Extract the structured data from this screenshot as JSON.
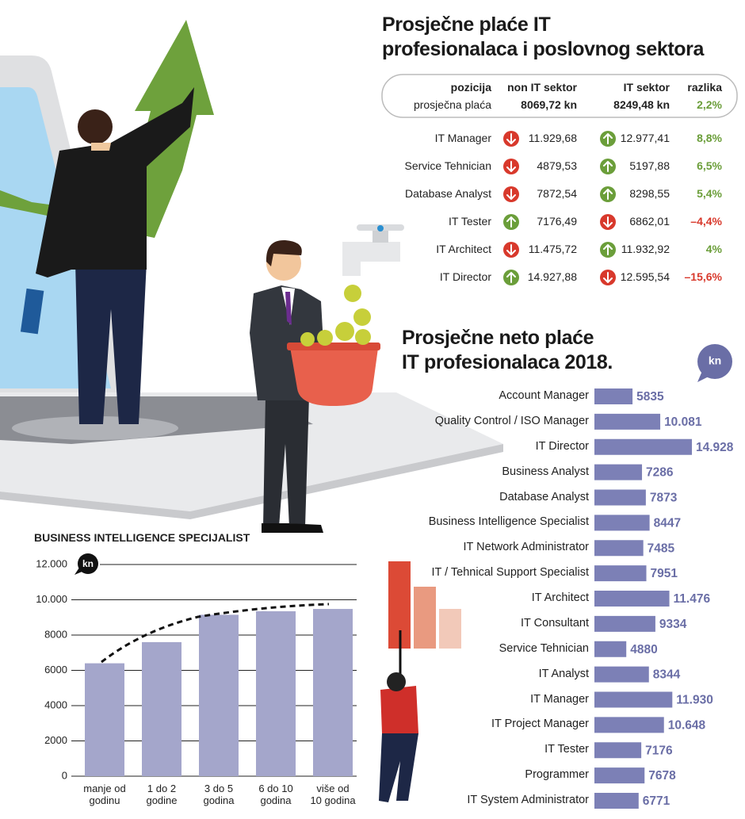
{
  "table": {
    "title": "Prosječne plaće IT\nprofesionalaca i poslovnog sektora",
    "header": [
      "pozicija",
      "non IT sektor",
      "IT sektor",
      "razlika"
    ],
    "summary": [
      "prosječna plaća",
      "8069,72 kn",
      "8249,48 kn",
      "2,2%"
    ],
    "colors": {
      "up": "#6b9e3a",
      "down": "#d8392c"
    },
    "rows": [
      {
        "label": "IT Manager",
        "non_it": "11.929,68",
        "non_it_trend": "down",
        "it": "12.977,41",
        "it_trend": "up",
        "diff": "8,8%"
      },
      {
        "label": "Service Tehnician",
        "non_it": "4879,53",
        "non_it_trend": "down",
        "it": "5197,88",
        "it_trend": "up",
        "diff": "6,5%"
      },
      {
        "label": "Database Analyst",
        "non_it": "7872,54",
        "non_it_trend": "down",
        "it": "8298,55",
        "it_trend": "up",
        "diff": "5,4%"
      },
      {
        "label": "IT Tester",
        "non_it": "7176,49",
        "non_it_trend": "up",
        "it": "6862,01",
        "it_trend": "down",
        "diff": "–4,4%"
      },
      {
        "label": "IT Architect",
        "non_it": "11.475,72",
        "non_it_trend": "down",
        "it": "11.932,92",
        "it_trend": "up",
        "diff": "4%"
      },
      {
        "label": "IT Director",
        "non_it": "14.927,88",
        "non_it_trend": "up",
        "it": "12.595,54",
        "it_trend": "down",
        "diff": "–15,6%"
      }
    ]
  },
  "chart_data": [
    {
      "type": "hbar",
      "title": "Prosječne neto plaće\nIT profesionalaca 2018.",
      "unit": "kn",
      "color": "#7c80b6",
      "label_color": "#6a6ea6",
      "categories": [
        "Account Manager",
        "Quality Control / ISO Manager",
        "IT Director",
        "Business Analyst",
        "Database Analyst",
        "Business Intelligence Specialist",
        "IT Network Administrator",
        "IT / Tehnical Support Specialist",
        "IT Architect",
        "IT Consultant",
        "Service Tehnician",
        "IT Analyst",
        "IT Manager",
        "IT Project Manager",
        "IT Tester",
        "Programmer",
        "IT System Administrator"
      ],
      "values": [
        5835,
        10081,
        14928,
        7286,
        7873,
        8447,
        7485,
        7951,
        11476,
        9334,
        4880,
        8344,
        11930,
        10648,
        7176,
        7678,
        6771
      ],
      "value_labels": [
        "5835",
        "10.081",
        "14.928",
        "7286",
        "7873",
        "8447",
        "7485",
        "7951",
        "11.476",
        "9334",
        "4880",
        "8344",
        "11.930",
        "10.648",
        "7176",
        "7678",
        "6771"
      ]
    },
    {
      "type": "bar",
      "title": "BUSINESS INTELLIGENCE SPECIJALIST",
      "unit": "kn",
      "color": "#a4a6cb",
      "categories": [
        "manje od\ngodinu",
        "1 do 2\ngodine",
        "3 do 5\ngodina",
        "6 do 10\ngodina",
        "više od\n10 godina"
      ],
      "values": [
        6400,
        7600,
        9150,
        9350,
        9480
      ],
      "ylim": [
        0,
        12000
      ],
      "yticks": [
        0,
        2000,
        4000,
        6000,
        8000,
        {
          "value": 10000,
          "label": "10.000"
        },
        {
          "value": 12000,
          "label": "12.000"
        }
      ],
      "grid": true
    }
  ]
}
